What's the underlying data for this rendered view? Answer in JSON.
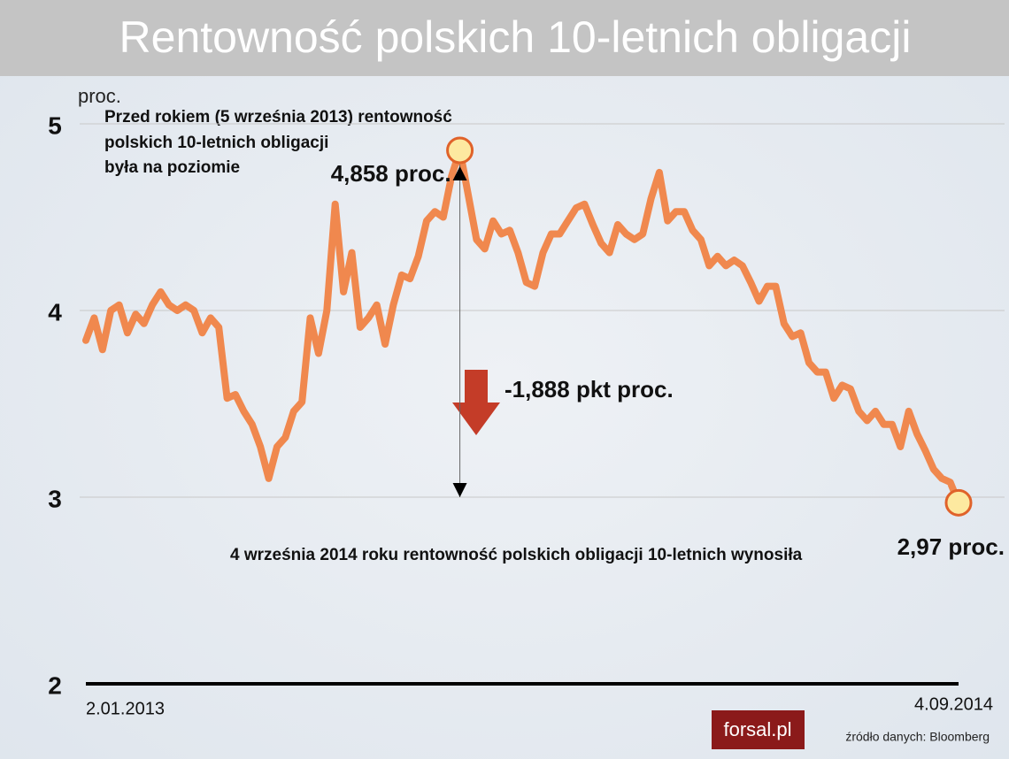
{
  "chart_data": {
    "type": "line",
    "title": "Rentowność polskich 10-letnich obligacji",
    "y_label": "proc.",
    "annotations": [
      "Przed rokiem (5 września 2013) rentowność",
      "polskich 10-letnich obligacji",
      "była na poziomie",
      "-1,888 pkt proc.",
      "4 września 2014 roku rentowność polskich obligacji 10-letnich wynosiła"
    ],
    "source": "źródło danych: Bloomberg",
    "logo": "forsal.pl",
    "categories": [
      "2.01.2013",
      null,
      null,
      null,
      null,
      null,
      null,
      null,
      null,
      null,
      null,
      null,
      null,
      null,
      null,
      null,
      null,
      null,
      null,
      null,
      null,
      null,
      null,
      null,
      null,
      null,
      null,
      null,
      null,
      null,
      null,
      null,
      null,
      null,
      null,
      null,
      null,
      null,
      null,
      null,
      null,
      null,
      null,
      null,
      null,
      null,
      null,
      null,
      null,
      null,
      null,
      null,
      null,
      null,
      null,
      null,
      null,
      null,
      null,
      null,
      null,
      null,
      null,
      null,
      null,
      null,
      null,
      null,
      null,
      null,
      null,
      null,
      null,
      null,
      null,
      null,
      null,
      null,
      null,
      null,
      null,
      null,
      null,
      null,
      null,
      null,
      null,
      null,
      null,
      null,
      null,
      null,
      null,
      null,
      null,
      null,
      null,
      null,
      null,
      null,
      null,
      null,
      null,
      null,
      null,
      "4.09.2014"
    ],
    "series": [
      {
        "color": "#f0884e",
        "values": [
          3.84,
          3.96,
          3.79,
          4.0,
          4.03,
          3.88,
          3.98,
          3.93,
          4.03,
          4.1,
          4.03,
          4.0,
          4.03,
          4.0,
          3.88,
          3.96,
          3.91,
          3.53,
          3.55,
          3.46,
          3.39,
          3.27,
          3.1,
          3.27,
          3.32,
          3.46,
          3.51,
          3.96,
          3.77,
          4.0,
          4.57,
          4.1,
          4.31,
          3.91,
          3.96,
          4.03,
          3.82,
          4.03,
          4.19,
          4.17,
          4.29,
          4.48,
          4.53,
          4.5,
          4.72,
          4.858,
          4.62,
          4.38,
          4.33,
          4.48,
          4.41,
          4.43,
          4.31,
          4.15,
          4.13,
          4.31,
          4.41,
          4.41,
          4.48,
          4.55,
          4.57,
          4.46,
          4.36,
          4.31,
          4.46,
          4.41,
          4.38,
          4.41,
          4.6,
          4.74,
          4.48,
          4.53,
          4.53,
          4.43,
          4.38,
          4.24,
          4.29,
          4.24,
          4.27,
          4.24,
          4.15,
          4.05,
          4.13,
          4.13,
          3.93,
          3.86,
          3.88,
          3.72,
          3.67,
          3.67,
          3.53,
          3.6,
          3.58,
          3.46,
          3.41,
          3.46,
          3.39,
          3.39,
          3.27,
          3.46,
          3.34,
          3.25,
          3.15,
          3.1,
          3.08,
          2.97
        ],
        "value_labels": [
          null,
          null,
          null,
          null,
          null,
          null,
          null,
          null,
          null,
          null,
          null,
          null,
          null,
          null,
          null,
          null,
          null,
          null,
          null,
          null,
          null,
          null,
          null,
          null,
          null,
          null,
          null,
          null,
          null,
          null,
          null,
          null,
          null,
          null,
          null,
          null,
          null,
          null,
          null,
          null,
          null,
          null,
          null,
          null,
          null,
          "4,858 proc.",
          null,
          null,
          null,
          null,
          null,
          null,
          null,
          null,
          null,
          null,
          null,
          null,
          null,
          null,
          null,
          null,
          null,
          null,
          null,
          null,
          null,
          null,
          null,
          null,
          null,
          null,
          null,
          null,
          null,
          null,
          null,
          null,
          null,
          null,
          null,
          null,
          null,
          null,
          null,
          null,
          null,
          null,
          null,
          null,
          null,
          null,
          null,
          null,
          null,
          null,
          null,
          null,
          null,
          null,
          null,
          null,
          null,
          null,
          null,
          "2,97 proc."
        ]
      }
    ],
    "ylim": [
      2,
      5
    ],
    "yticks": [
      2,
      3,
      4,
      5
    ],
    "grid": true
  }
}
